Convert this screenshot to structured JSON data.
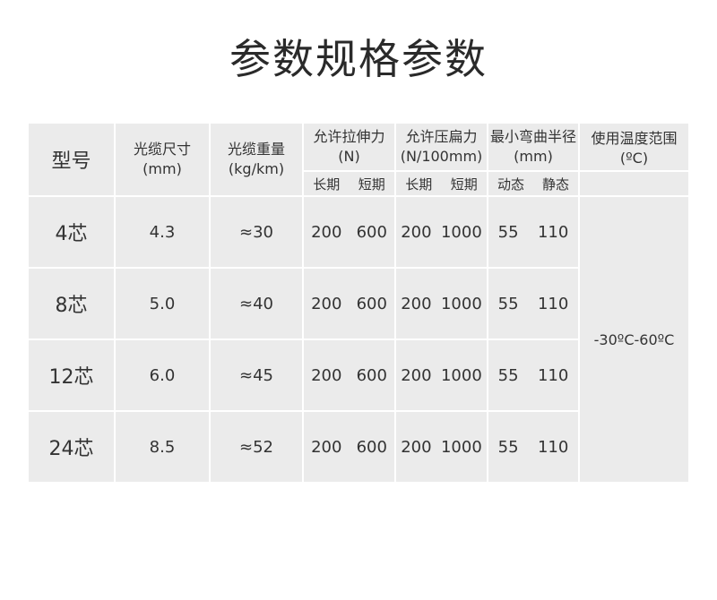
{
  "title": "参数规格参数",
  "table": {
    "headers": {
      "model": "型号",
      "size": {
        "label": "光缆尺寸",
        "unit": "(mm)"
      },
      "weight": {
        "label": "光缆重量",
        "unit": "(kg/km)"
      },
      "tensile": {
        "label": "允许拉伸力",
        "unit": "(N)",
        "sub": [
          "长期",
          "短期"
        ]
      },
      "crush": {
        "label": "允许压扁力",
        "unit": "(N/100mm)",
        "sub": [
          "长期",
          "短期"
        ]
      },
      "bend": {
        "label": "最小弯曲半径",
        "unit": "(mm)",
        "sub": [
          "动态",
          "静态"
        ]
      },
      "temp": {
        "label": "使用温度范围",
        "unit": "(ºC)"
      }
    },
    "rows": [
      {
        "model": "4芯",
        "size": "4.3",
        "weight": "≈30",
        "tensile": [
          "200",
          "600"
        ],
        "crush": [
          "200",
          "1000"
        ],
        "bend": [
          "55",
          "110"
        ]
      },
      {
        "model": "8芯",
        "size": "5.0",
        "weight": "≈40",
        "tensile": [
          "200",
          "600"
        ],
        "crush": [
          "200",
          "1000"
        ],
        "bend": [
          "55",
          "110"
        ]
      },
      {
        "model": "12芯",
        "size": "6.0",
        "weight": "≈45",
        "tensile": [
          "200",
          "600"
        ],
        "crush": [
          "200",
          "1000"
        ],
        "bend": [
          "55",
          "110"
        ]
      },
      {
        "model": "24芯",
        "size": "8.5",
        "weight": "≈52",
        "tensile": [
          "200",
          "600"
        ],
        "crush": [
          "200",
          "1000"
        ],
        "bend": [
          "55",
          "110"
        ]
      }
    ],
    "temp_range": "-30ºC-60ºC"
  }
}
